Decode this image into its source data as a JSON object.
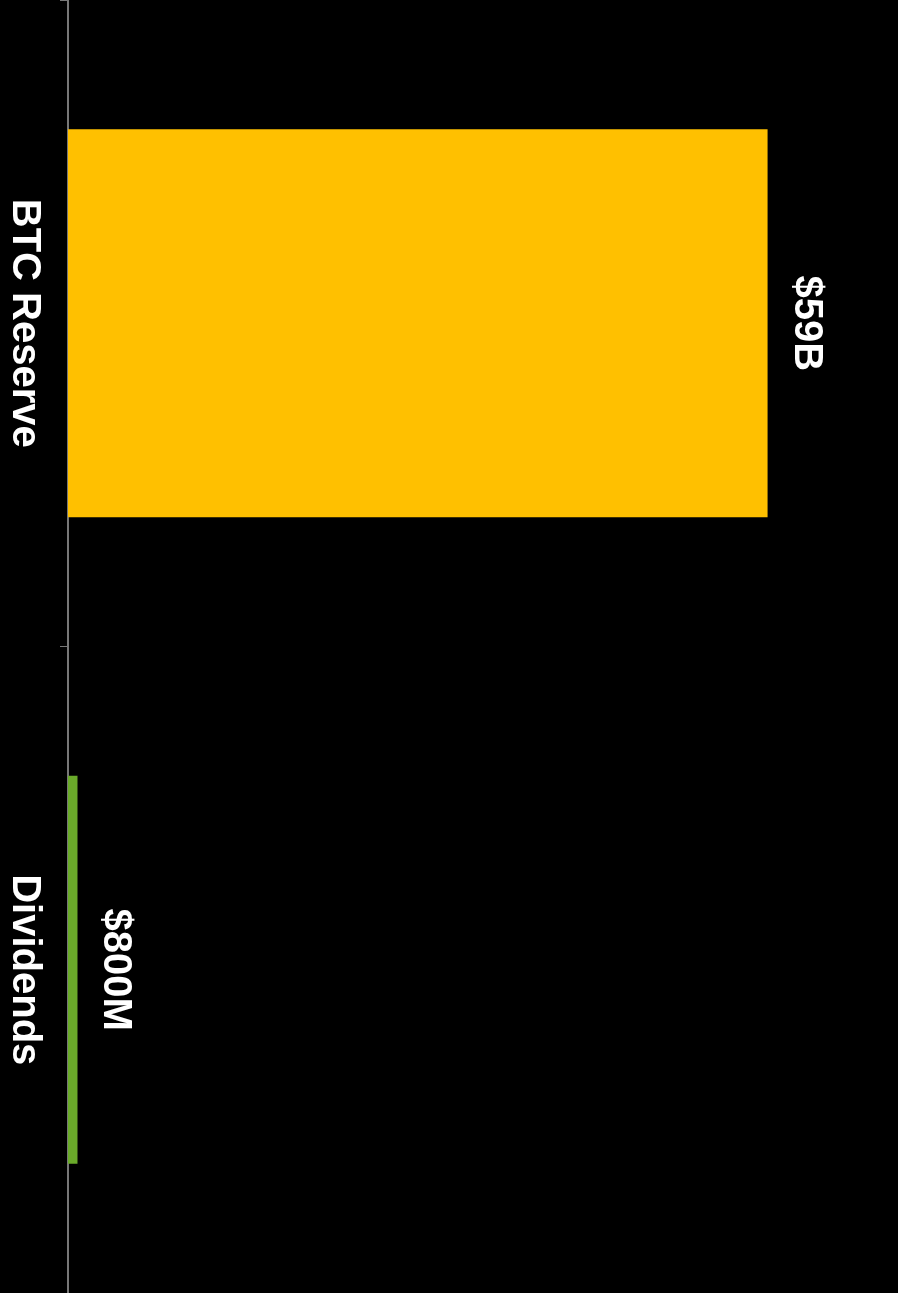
{
  "chart_data": {
    "type": "bar",
    "orientation": "horizontal",
    "categories": [
      "BTC Reserve",
      "Dividends"
    ],
    "values": [
      59000000000,
      800000000
    ],
    "colors": [
      "#ffc000",
      "#6aaa2a"
    ],
    "value_labels": [
      "$59B",
      "$800M"
    ],
    "legend": false,
    "grid": false
  }
}
